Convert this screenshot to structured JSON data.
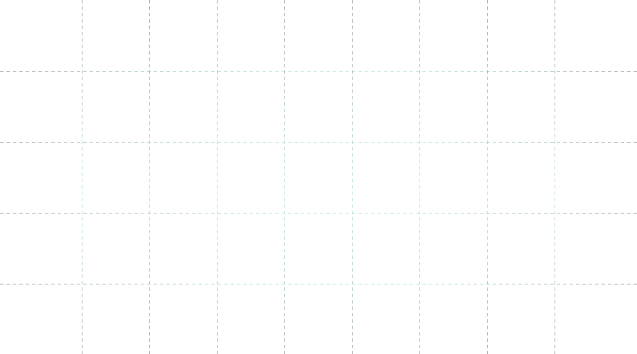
{
  "canvas": {
    "background_color": "#ffffff",
    "grid": {
      "style": "dashed",
      "edge_color": "#9aa0a6",
      "center_color": "#b9e6e0",
      "vertical_line_count": 8,
      "horizontal_line_count": 4
    }
  }
}
